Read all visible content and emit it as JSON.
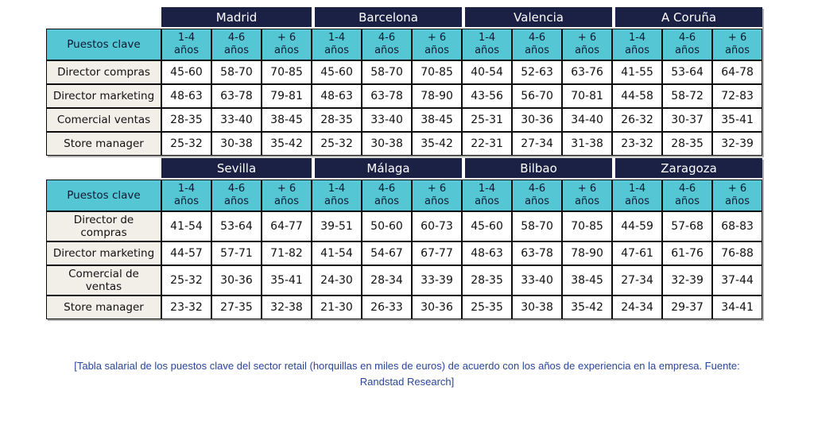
{
  "colors": {
    "navy": "#1a2144",
    "teal": "#55c6d3",
    "label-bg": "#f2efe9",
    "cell-bg": "#ffffff",
    "grid": "#0d0d0d",
    "city-text": "#ffffff",
    "header-text": "#0c1a33",
    "cell-text": "#111111",
    "caption-text": "#2a4699"
  },
  "row_header_label": "Puestos clave",
  "experience_columns": [
    {
      "range": "1-4",
      "unit": "años"
    },
    {
      "range": "4-6",
      "unit": "años"
    },
    {
      "range": "+ 6",
      "unit": "años"
    }
  ],
  "tables": [
    {
      "cities": [
        "Madrid",
        "Barcelona",
        "Valencia",
        "A Coruña"
      ],
      "rows": [
        {
          "label": "Director compras",
          "values": [
            "45-60",
            "58-70",
            "70-85",
            "45-60",
            "58-70",
            "70-85",
            "40-54",
            "52-63",
            "63-76",
            "41-55",
            "53-64",
            "64-78"
          ]
        },
        {
          "label": "Director marketing",
          "values": [
            "48-63",
            "63-78",
            "79-81",
            "48-63",
            "63-78",
            "78-90",
            "43-56",
            "56-70",
            "70-81",
            "44-58",
            "58-72",
            "72-83"
          ]
        },
        {
          "label": "Comercial ventas",
          "values": [
            "28-35",
            "33-40",
            "38-45",
            "28-35",
            "33-40",
            "38-45",
            "25-31",
            "30-36",
            "34-40",
            "26-32",
            "30-37",
            "35-41"
          ]
        },
        {
          "label": "Store manager",
          "values": [
            "25-32",
            "30-38",
            "35-42",
            "25-32",
            "30-38",
            "35-42",
            "22-31",
            "27-34",
            "31-38",
            "23-32",
            "28-35",
            "32-39"
          ]
        }
      ]
    },
    {
      "cities": [
        "Sevilla",
        "Málaga",
        "Bilbao",
        "Zaragoza"
      ],
      "rows": [
        {
          "label": "Director de compras",
          "values": [
            "41-54",
            "53-64",
            "64-77",
            "39-51",
            "50-60",
            "60-73",
            "45-60",
            "58-70",
            "70-85",
            "44-59",
            "57-68",
            "68-83"
          ]
        },
        {
          "label": "Director marketing",
          "values": [
            "44-57",
            "57-71",
            "71-82",
            "41-54",
            "54-67",
            "67-77",
            "48-63",
            "63-78",
            "78-90",
            "47-61",
            "61-76",
            "76-88"
          ]
        },
        {
          "label": "Comercial de ventas",
          "values": [
            "25-32",
            "30-36",
            "35-41",
            "24-30",
            "28-34",
            "33-39",
            "28-35",
            "33-40",
            "38-45",
            "27-34",
            "32-39",
            "37-44"
          ]
        },
        {
          "label": "Store manager",
          "values": [
            "23-32",
            "27-35",
            "32-38",
            "21-30",
            "26-33",
            "30-36",
            "25-35",
            "30-38",
            "35-42",
            "24-34",
            "29-37",
            "34-41"
          ]
        }
      ]
    }
  ],
  "caption": {
    "line1": "[Tabla salarial de los puestos clave del sector retail (horquillas en miles de euros) de acuerdo con los años de experiencia en la empresa. Fuente:",
    "line2": "Randstad Research]"
  }
}
